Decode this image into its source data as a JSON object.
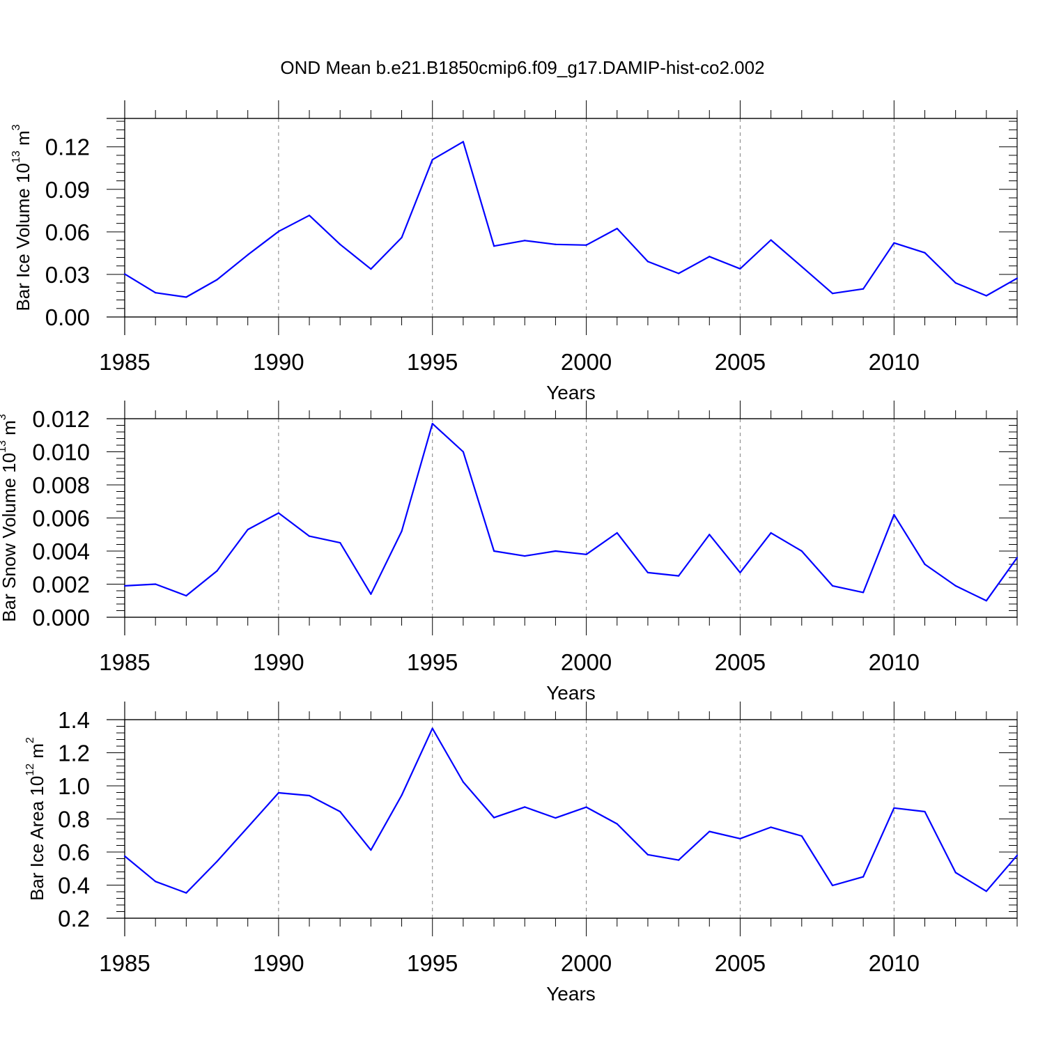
{
  "title": "OND Mean b.e21.B1850cmip6.f09_g17.DAMIP-hist-co2.002",
  "colors": {
    "line": "#0000ff",
    "axis": "#000000",
    "grid": "#808080"
  },
  "chart_data": [
    {
      "type": "line",
      "title": "OND Mean b.e21.B1850cmip6.f09_g17.DAMIP-hist-co2.002",
      "xlabel": "Years",
      "ylabel": {
        "main": "Bar Ice Volume 10",
        "sup": "13",
        "unit": " m",
        "unit_sup": "3"
      },
      "xlim": [
        1985,
        2014
      ],
      "ylim": [
        0,
        0.14
      ],
      "xticks": [
        "1985",
        "1990",
        "1995",
        "2000",
        "2005",
        "2010"
      ],
      "yticks": [
        "0.00",
        "0.03",
        "0.06",
        "0.09",
        "0.12"
      ],
      "ytick_values": [
        0,
        0.03,
        0.06,
        0.09,
        0.12
      ],
      "ydecimals": 3,
      "grid": "x-dashed",
      "x": [
        1985,
        1986,
        1987,
        1988,
        1989,
        1990,
        1991,
        1992,
        1993,
        1994,
        1995,
        1996,
        1997,
        1998,
        1999,
        2000,
        2001,
        2002,
        2003,
        2004,
        2005,
        2006,
        2007,
        2008,
        2009,
        2010,
        2011,
        2012,
        2013,
        2014
      ],
      "values": [
        0.0303,
        0.0171,
        0.014,
        0.0263,
        0.0438,
        0.0603,
        0.0716,
        0.0512,
        0.0338,
        0.056,
        0.1109,
        0.1236,
        0.05,
        0.0539,
        0.0512,
        0.0507,
        0.0624,
        0.0391,
        0.0307,
        0.0426,
        0.034,
        0.0543,
        0.0355,
        0.0166,
        0.0198,
        0.0522,
        0.0453,
        0.024,
        0.015,
        0.0273
      ]
    },
    {
      "type": "line",
      "xlabel": "Years",
      "ylabel": {
        "main": "Bar Snow Volume 10",
        "sup": "13",
        "unit": " m",
        "unit_sup": "3"
      },
      "xlim": [
        1985,
        2014
      ],
      "ylim": [
        0,
        0.012
      ],
      "xticks": [
        "1985",
        "1990",
        "1995",
        "2000",
        "2005",
        "2010"
      ],
      "yticks": [
        "0.000",
        "0.002",
        "0.004",
        "0.006",
        "0.008",
        "0.010",
        "0.012"
      ],
      "ytick_values": [
        0,
        0.002,
        0.004,
        0.006,
        0.008,
        0.01,
        0.012
      ],
      "ydecimals": 4,
      "grid": "x-dashed",
      "x": [
        1985,
        1986,
        1987,
        1988,
        1989,
        1990,
        1991,
        1992,
        1993,
        1994,
        1995,
        1996,
        1997,
        1998,
        1999,
        2000,
        2001,
        2002,
        2003,
        2004,
        2005,
        2006,
        2007,
        2008,
        2009,
        2010,
        2011,
        2012,
        2013,
        2014
      ],
      "values": [
        0.0019,
        0.002,
        0.0013,
        0.0028,
        0.0053,
        0.0063,
        0.0049,
        0.0045,
        0.0014,
        0.0052,
        0.0117,
        0.01,
        0.004,
        0.0037,
        0.004,
        0.0038,
        0.0051,
        0.0027,
        0.0025,
        0.005,
        0.0027,
        0.0051,
        0.004,
        0.0019,
        0.0015,
        0.0062,
        0.0032,
        0.0019,
        0.001,
        0.0036
      ]
    },
    {
      "type": "line",
      "xlabel": "Years",
      "ylabel": {
        "main": "Bar Ice Area 10",
        "sup": "12",
        "unit": " m",
        "unit_sup": "2"
      },
      "xlim": [
        1985,
        2014
      ],
      "ylim": [
        0.2,
        1.4
      ],
      "xticks": [
        "1985",
        "1990",
        "1995",
        "2000",
        "2005",
        "2010"
      ],
      "yticks": [
        "0.2",
        "0.4",
        "0.6",
        "0.8",
        "1.0",
        "1.2",
        "1.4"
      ],
      "ytick_values": [
        0.2,
        0.4,
        0.6,
        0.8,
        1.0,
        1.2,
        1.4
      ],
      "ydecimals": 3,
      "grid": "x-dashed",
      "x": [
        1985,
        1986,
        1987,
        1988,
        1989,
        1990,
        1991,
        1992,
        1993,
        1994,
        1995,
        1996,
        1997,
        1998,
        1999,
        2000,
        2001,
        2002,
        2003,
        2004,
        2005,
        2006,
        2007,
        2008,
        2009,
        2010,
        2011,
        2012,
        2013,
        2014
      ],
      "values": [
        0.575,
        0.422,
        0.353,
        0.543,
        0.75,
        0.958,
        0.941,
        0.844,
        0.612,
        0.943,
        1.347,
        1.023,
        0.808,
        0.872,
        0.806,
        0.871,
        0.77,
        0.584,
        0.551,
        0.724,
        0.681,
        0.75,
        0.697,
        0.398,
        0.45,
        0.866,
        0.844,
        0.476,
        0.363,
        0.58
      ]
    }
  ]
}
